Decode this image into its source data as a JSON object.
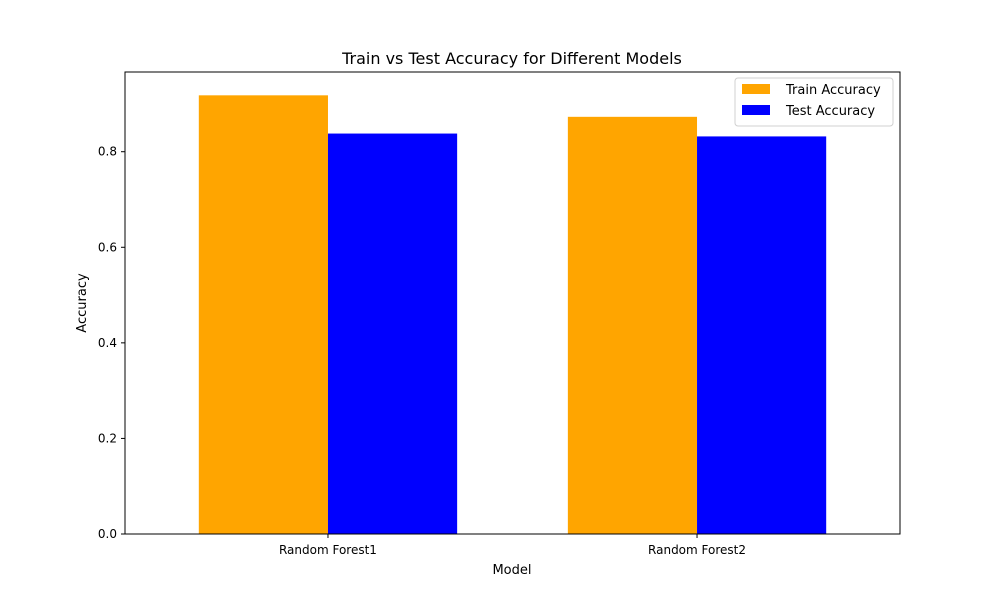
{
  "chart_data": {
    "type": "bar",
    "title": "Train vs Test Accuracy for Different Models",
    "xlabel": "Model",
    "ylabel": "Accuracy",
    "categories": [
      "Random Forest1",
      "Random Forest2"
    ],
    "series": [
      {
        "name": "Train Accuracy",
        "color": "#ffa500",
        "values": [
          0.918,
          0.873
        ]
      },
      {
        "name": "Test Accuracy",
        "color": "#0000ff",
        "values": [
          0.838,
          0.832
        ]
      }
    ],
    "ylim": [
      0,
      0.9668
    ],
    "yticks": [
      "0.0",
      "0.2",
      "0.4",
      "0.6",
      "0.8"
    ],
    "grid": false,
    "legend_position": "top-right"
  }
}
